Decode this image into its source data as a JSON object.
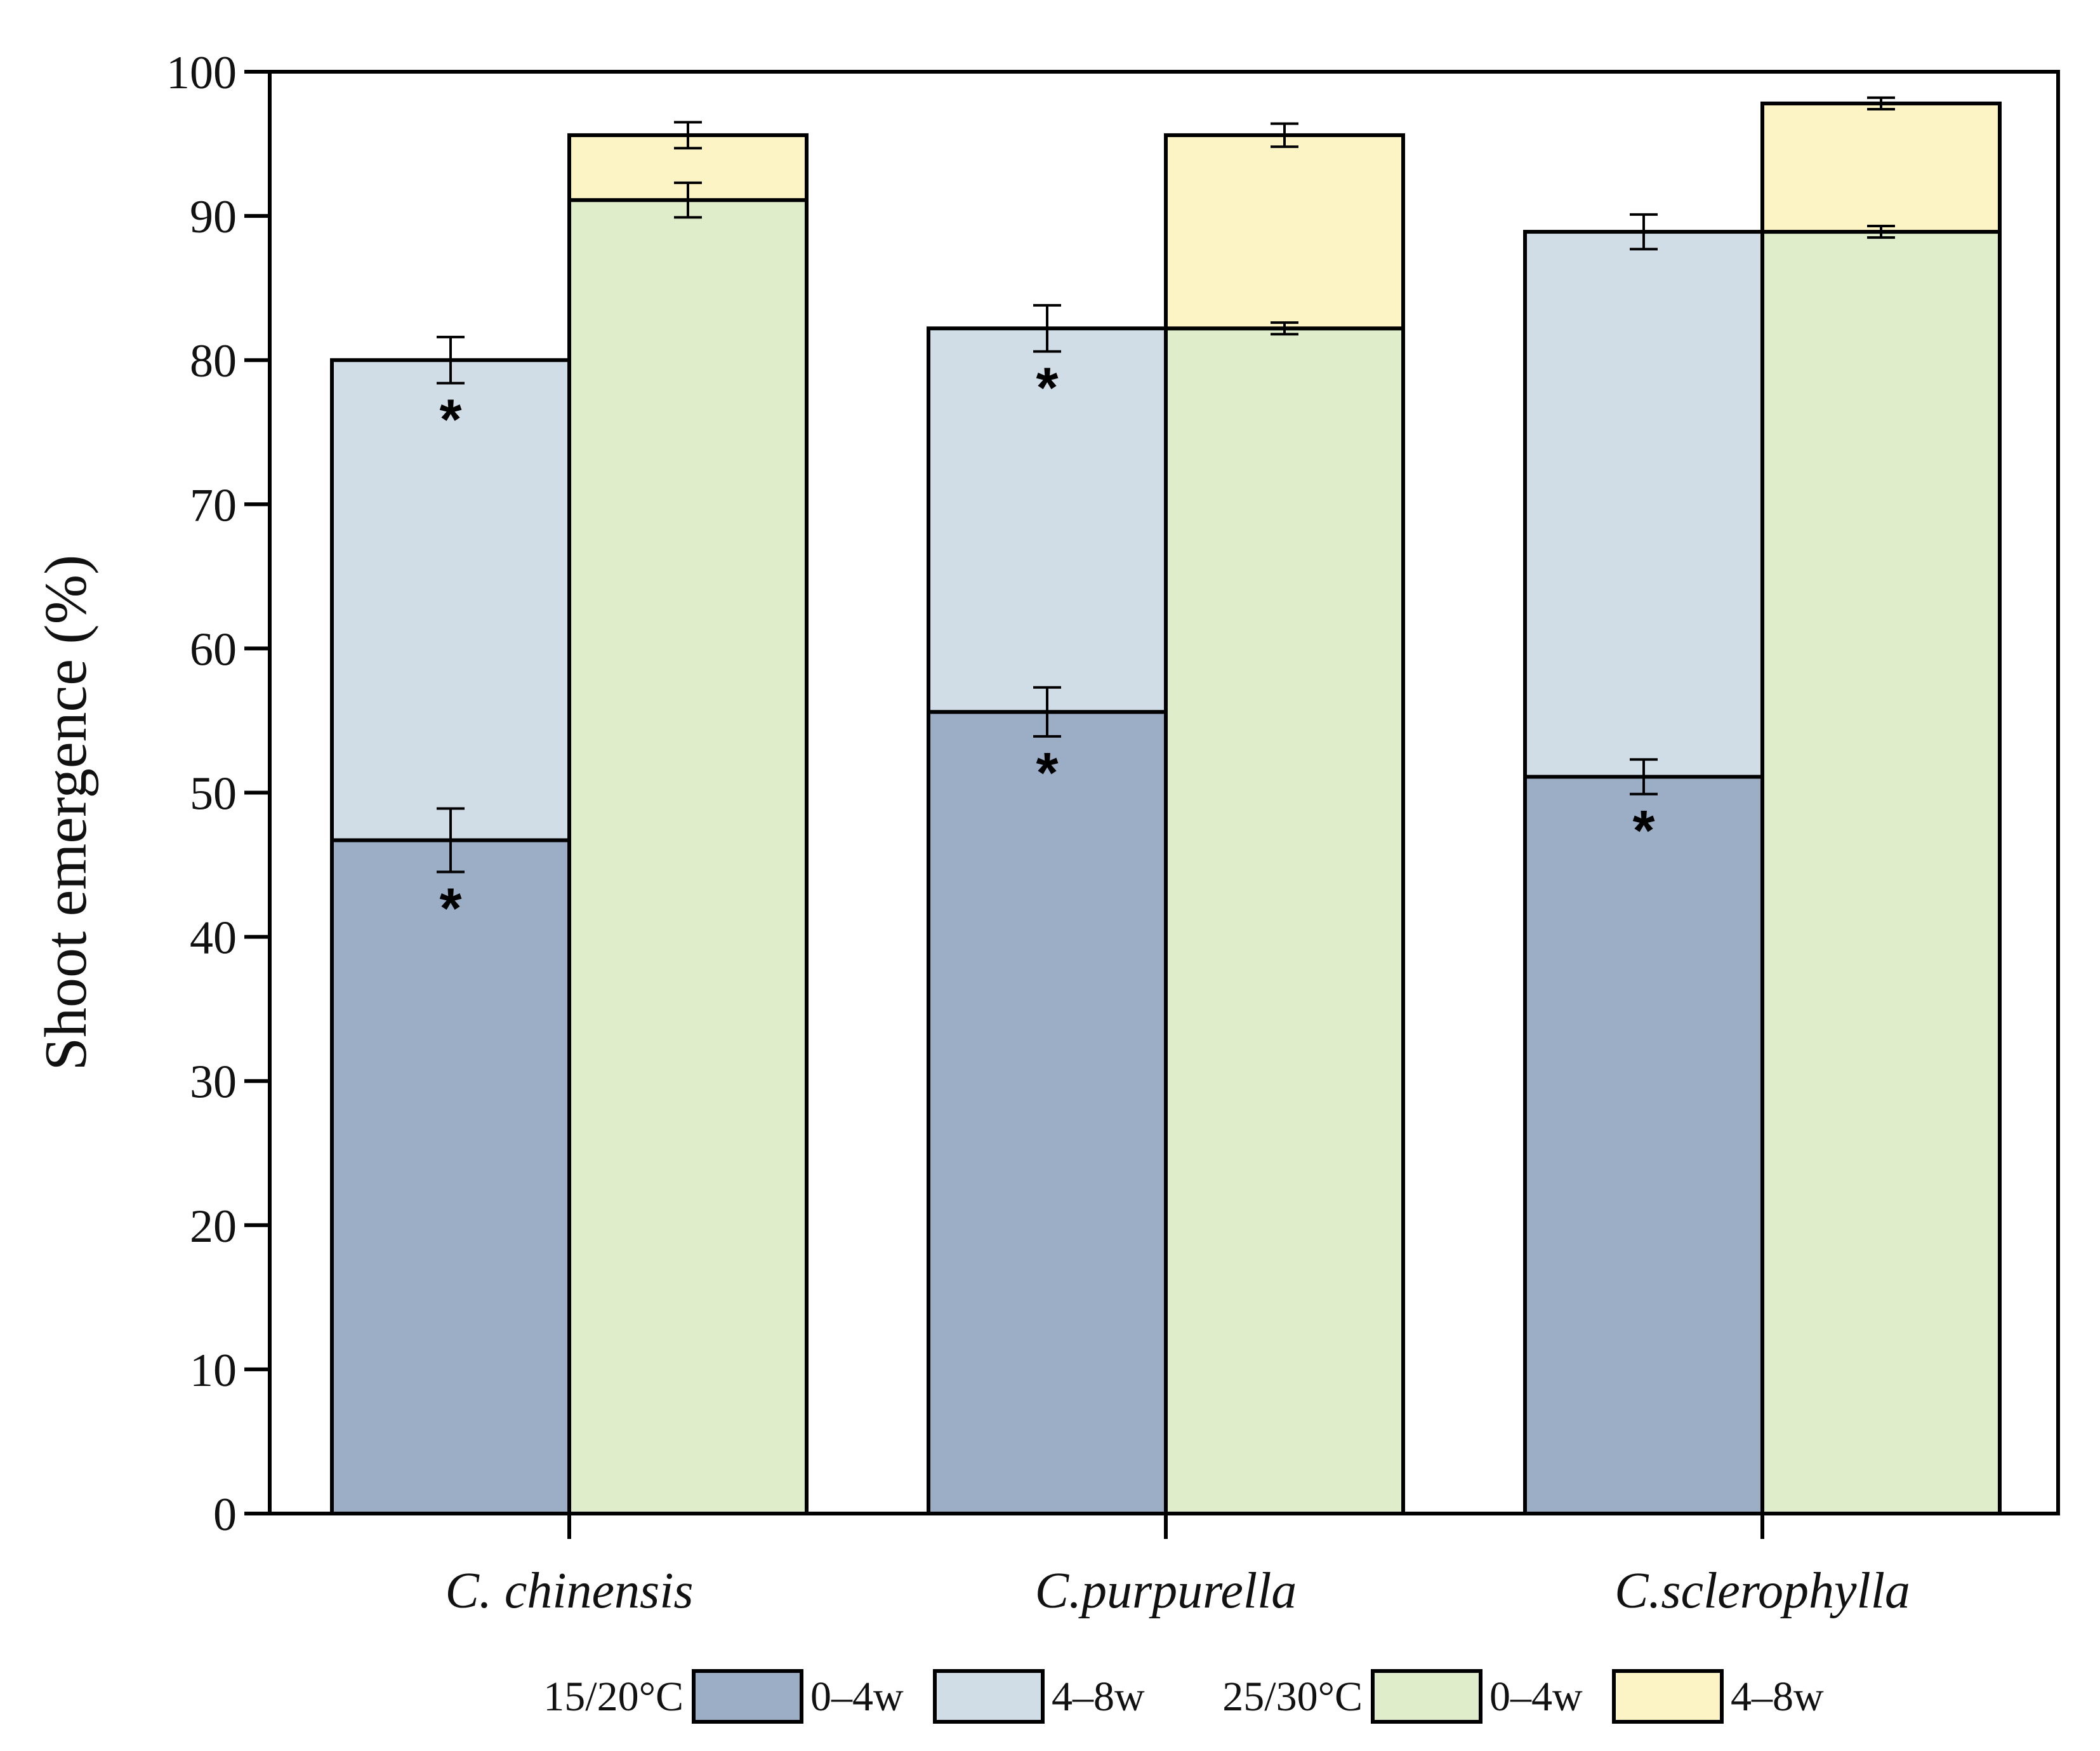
{
  "chart_data": {
    "type": "bar",
    "stacked": true,
    "title": "",
    "xlabel": "",
    "ylabel": "Shoot emergence (%)",
    "ylim": [
      0,
      100
    ],
    "yticks": [
      0,
      10,
      20,
      30,
      40,
      50,
      60,
      70,
      80,
      90,
      100
    ],
    "categories": [
      "C. chinensis",
      "C.purpurella",
      "C.sclerophylla"
    ],
    "groups": [
      {
        "name": "15/20°C",
        "segments": [
          {
            "name": "0–4w",
            "color": "#9caec6",
            "values": [
              46.7,
              55.6,
              51.1
            ],
            "errors": [
              2.2,
              1.7,
              1.2
            ],
            "significant": [
              true,
              true,
              true
            ]
          },
          {
            "name": "4–8w",
            "color": "#d0dde6",
            "cumulative": [
              80.0,
              82.2,
              88.9
            ],
            "errors": [
              1.6,
              1.6,
              1.2
            ],
            "significant": [
              true,
              true,
              false
            ]
          }
        ]
      },
      {
        "name": "25/30°C",
        "segments": [
          {
            "name": "0–4w",
            "color": "#dfedcb",
            "values": [
              91.1,
              82.2,
              88.9
            ],
            "errors": [
              1.2,
              0.4,
              0.4
            ],
            "significant": [
              false,
              false,
              false
            ]
          },
          {
            "name": "4–8w",
            "color": "#fdf4c6",
            "cumulative": [
              95.6,
              95.6,
              97.8
            ],
            "errors": [
              0.9,
              0.8,
              0.4
            ],
            "significant": [
              false,
              false,
              false
            ]
          }
        ]
      }
    ],
    "significance_marker": "*",
    "legend": {
      "placement": "bottom",
      "entries": [
        {
          "group": "15/20°C",
          "label": "0–4w",
          "color": "#9caec6"
        },
        {
          "group": "",
          "label": "4–8w",
          "color": "#d0dde6"
        },
        {
          "group": "25/30°C",
          "label": "0–4w",
          "color": "#dfedcb"
        },
        {
          "group": "",
          "label": "4–8w",
          "color": "#fdf4c6"
        }
      ]
    }
  }
}
